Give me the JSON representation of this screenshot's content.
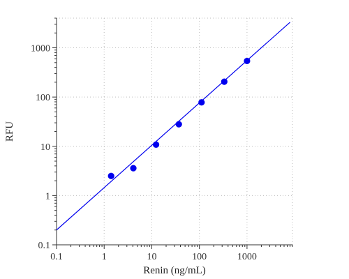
{
  "chart_data": {
    "type": "scatter",
    "title": "",
    "xlabel": "Renin (ng/mL)",
    "ylabel": "RFU",
    "x_scale": "log",
    "y_scale": "log",
    "xlim": [
      0.1,
      9000
    ],
    "ylim": [
      0.1,
      4000
    ],
    "x_major_ticks": [
      0.1,
      1,
      10,
      100,
      1000
    ],
    "x_tick_labels": [
      "0.1",
      "1",
      "10",
      "100",
      "1000"
    ],
    "y_major_ticks": [
      0.1,
      1,
      10,
      100,
      1000
    ],
    "y_tick_labels": [
      "0.1",
      "1",
      "10",
      "100",
      "1000"
    ],
    "grid": true,
    "legend": "none",
    "series": [
      {
        "kind": "points",
        "color": "#0000ee",
        "x": [
          1.4,
          4.1,
          12.3,
          37,
          111,
          333,
          1000
        ],
        "y": [
          2.5,
          3.6,
          10.8,
          28,
          78,
          205,
          540
        ]
      },
      {
        "kind": "fit-line",
        "color": "#0000ee",
        "x": [
          0.1,
          8000
        ],
        "y": [
          0.2,
          3300
        ]
      }
    ]
  }
}
